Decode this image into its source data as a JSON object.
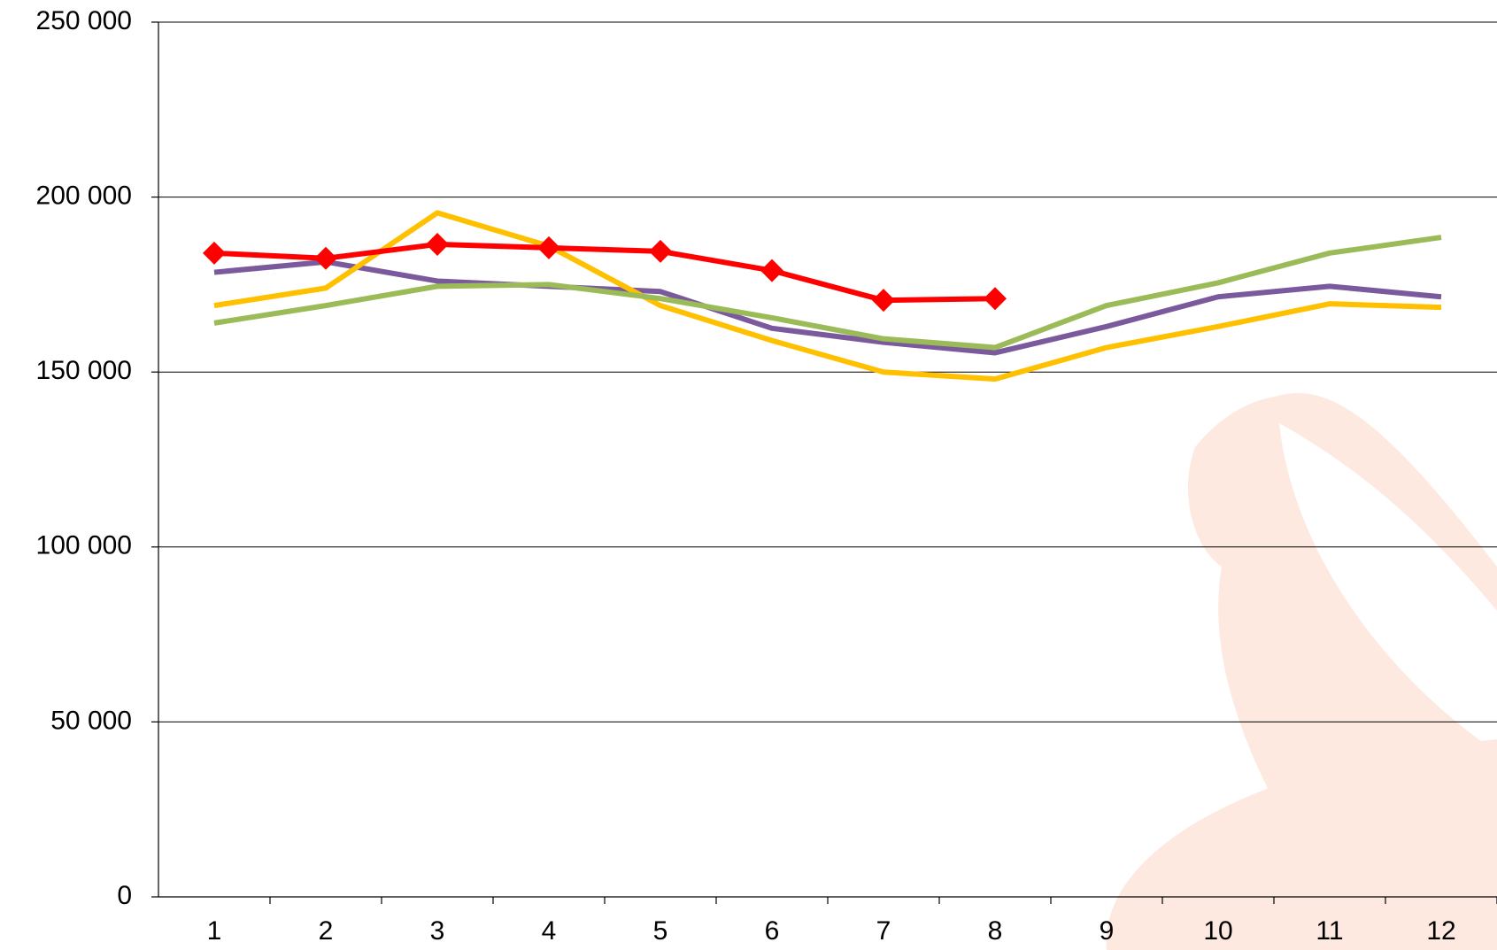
{
  "chart_data": {
    "type": "line",
    "categories": [
      "1",
      "2",
      "3",
      "4",
      "5",
      "6",
      "7",
      "8",
      "9",
      "10",
      "11",
      "12"
    ],
    "series": [
      {
        "color": "#7a5a9c",
        "values": [
          178500,
          181500,
          176000,
          174500,
          173000,
          162500,
          158500,
          155500,
          163000,
          171500,
          174500,
          171500
        ]
      },
      {
        "color": "#ffc000",
        "values": [
          169000,
          174000,
          195500,
          186000,
          169000,
          159000,
          150000,
          148000,
          157000,
          163000,
          169500,
          168500
        ]
      },
      {
        "color": "#9bbb59",
        "values": [
          164000,
          169000,
          174500,
          175000,
          171000,
          165500,
          159500,
          157000,
          169000,
          175500,
          184000,
          188500
        ]
      },
      {
        "color": "#ff0000",
        "values": [
          184000,
          182500,
          186500,
          185500,
          184500,
          179000,
          170500,
          171000,
          null,
          null,
          null,
          null
        ],
        "marker": "diamond"
      }
    ],
    "ylim": [
      0,
      250000
    ],
    "yticks": [
      0,
      {
        "value": 50000,
        "label": "50 000"
      },
      {
        "value": 100000,
        "label": "100 000"
      },
      {
        "value": 150000,
        "label": "150 000"
      },
      {
        "value": 200000,
        "label": "200 000"
      },
      {
        "value": 250000,
        "label": "250 000"
      }
    ],
    "grid": true
  }
}
